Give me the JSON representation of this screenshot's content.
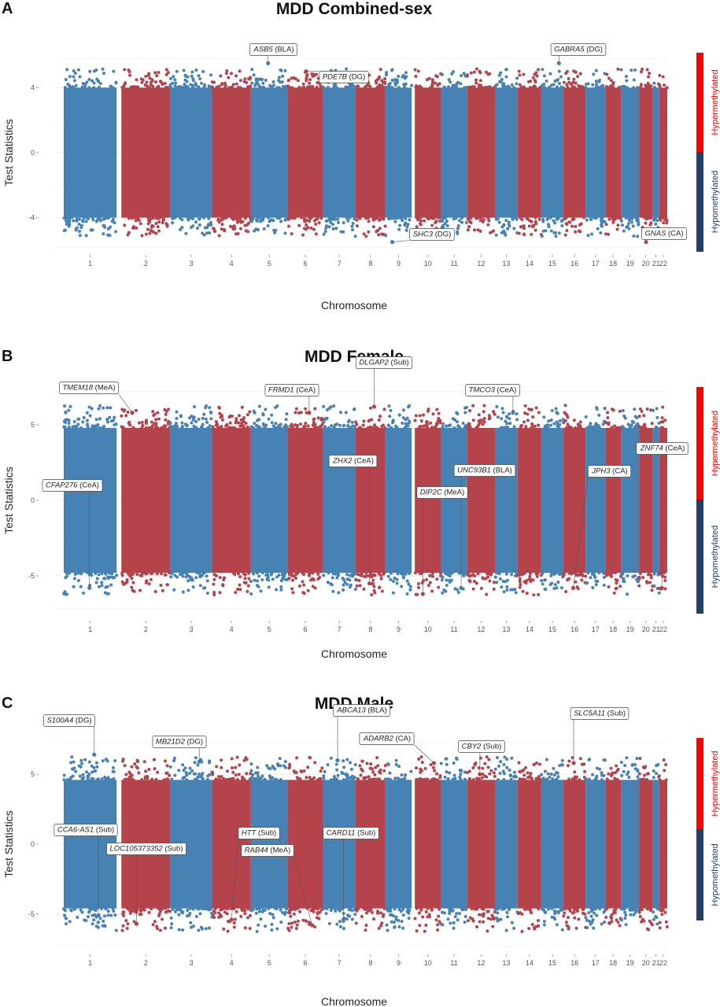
{
  "colors": {
    "blue": "#4682b4",
    "red": "#b5434b",
    "hyper": "#ff0000",
    "hypo": "#1f3f66"
  },
  "sidebar_labels": {
    "hyper": "Hypermethylated",
    "hypo": "Hypomethylated"
  },
  "chromosomes": [
    "1",
    "2",
    "3",
    "4",
    "5",
    "6",
    "7",
    "8",
    "9",
    "10",
    "11",
    "12",
    "13",
    "14",
    "15",
    "16",
    "17",
    "18",
    "19",
    "20",
    "21",
    "22"
  ],
  "chart_data": [
    {
      "panel": "A",
      "title": "MDD Combined-sex",
      "type": "scatter",
      "xlabel": "Chromosome",
      "ylabel": "Test Statistics",
      "ylim": [
        -6.1,
        6.1
      ],
      "yticks": [
        -4,
        0,
        4
      ],
      "ytick_labels": [
        "-4",
        "0",
        "4"
      ],
      "bulk_band": [
        -4.0,
        4.0
      ],
      "annotations": [
        {
          "gene": "ASB5",
          "region": "(BLA)",
          "chr": "5",
          "y": 5.5
        },
        {
          "gene": "PDE7B",
          "region": "(DG)",
          "chr": "6",
          "y": 5.0
        },
        {
          "gene": "GABRA5",
          "region": "(DG)",
          "chr": "15",
          "y": 5.5
        },
        {
          "gene": "SHC3",
          "region": "(DG)",
          "chr": "9",
          "y": -5.5
        },
        {
          "gene": "GNAS",
          "region": "(CA)",
          "chr": "20",
          "y": -5.5
        }
      ]
    },
    {
      "panel": "B",
      "title": "MDD Female",
      "type": "scatter",
      "xlabel": "Chromosome",
      "ylabel": "Test Statistics",
      "ylim": [
        -7.5,
        7.5
      ],
      "yticks": [
        -5,
        0,
        5
      ],
      "ytick_labels": [
        "-5",
        "0",
        "5"
      ],
      "bulk_band": [
        -4.8,
        4.8
      ],
      "annotations": [
        {
          "gene": "TMEM18",
          "region": "(MeA)",
          "chr": "2",
          "y": 5.8
        },
        {
          "gene": "FRMD1",
          "region": "(CeA)",
          "chr": "6",
          "y": 5.8
        },
        {
          "gene": "DLGAP2",
          "region": "(Sub)",
          "chr": "8",
          "y": 6.2
        },
        {
          "gene": "TMCO3",
          "region": "(CeA)",
          "chr": "13",
          "y": 5.8
        },
        {
          "gene": "CFAP276",
          "region": "(CeA)",
          "chr": "1",
          "y": -5.8
        },
        {
          "gene": "ZHX2",
          "region": "(CeA)",
          "chr": "8",
          "y": -5.5
        },
        {
          "gene": "UNC93B1",
          "region": "(BLA)",
          "chr": "11",
          "y": -5.8
        },
        {
          "gene": "DIP2C",
          "region": "(MeA)",
          "chr": "10",
          "y": -6.2
        },
        {
          "gene": "JPH3",
          "region": "(CA)",
          "chr": "16",
          "y": -5.8
        },
        {
          "gene": "ZNF74",
          "region": "(CeA)",
          "chr": "22",
          "y": -5.8
        }
      ]
    },
    {
      "panel": "C",
      "title": "MDD Male",
      "type": "scatter",
      "xlabel": "Chromosome",
      "ylabel": "Test Statistics",
      "ylim": [
        -7.6,
        7.6
      ],
      "yticks": [
        -5,
        0,
        5
      ],
      "ytick_labels": [
        "-5",
        "0",
        "5"
      ],
      "bulk_band": [
        -4.6,
        4.6
      ],
      "annotations": [
        {
          "gene": "S100A4",
          "region": "(DG)",
          "chr": "1",
          "y": 6.4
        },
        {
          "gene": "MB21D2",
          "region": "(DG)",
          "chr": "3",
          "y": 5.9
        },
        {
          "gene": "ABCA13",
          "region": "(BLA)",
          "chr": "7",
          "y": 6.0
        },
        {
          "gene": "ADARB2",
          "region": "(CA)",
          "chr": "10",
          "y": 5.8
        },
        {
          "gene": "CBY2",
          "region": "(Sub)",
          "chr": "12",
          "y": 5.0
        },
        {
          "gene": "SLC5A11",
          "region": "(Sub)",
          "chr": "16",
          "y": 5.8
        },
        {
          "gene": "CCA6-AS1",
          "region": "(Sub)",
          "chr": "1",
          "y": -5.1
        },
        {
          "gene": "LOC105373352",
          "region": "(Sub)",
          "chr": "2",
          "y": -5.7
        },
        {
          "gene": "HTT",
          "region": "(Sub)",
          "chr": "4",
          "y": -5.4
        },
        {
          "gene": "RAB44",
          "region": "(MeA)",
          "chr": "6",
          "y": -5.8
        },
        {
          "gene": "CARD11",
          "region": "(Sub)",
          "chr": "7",
          "y": -5.4
        }
      ]
    }
  ]
}
